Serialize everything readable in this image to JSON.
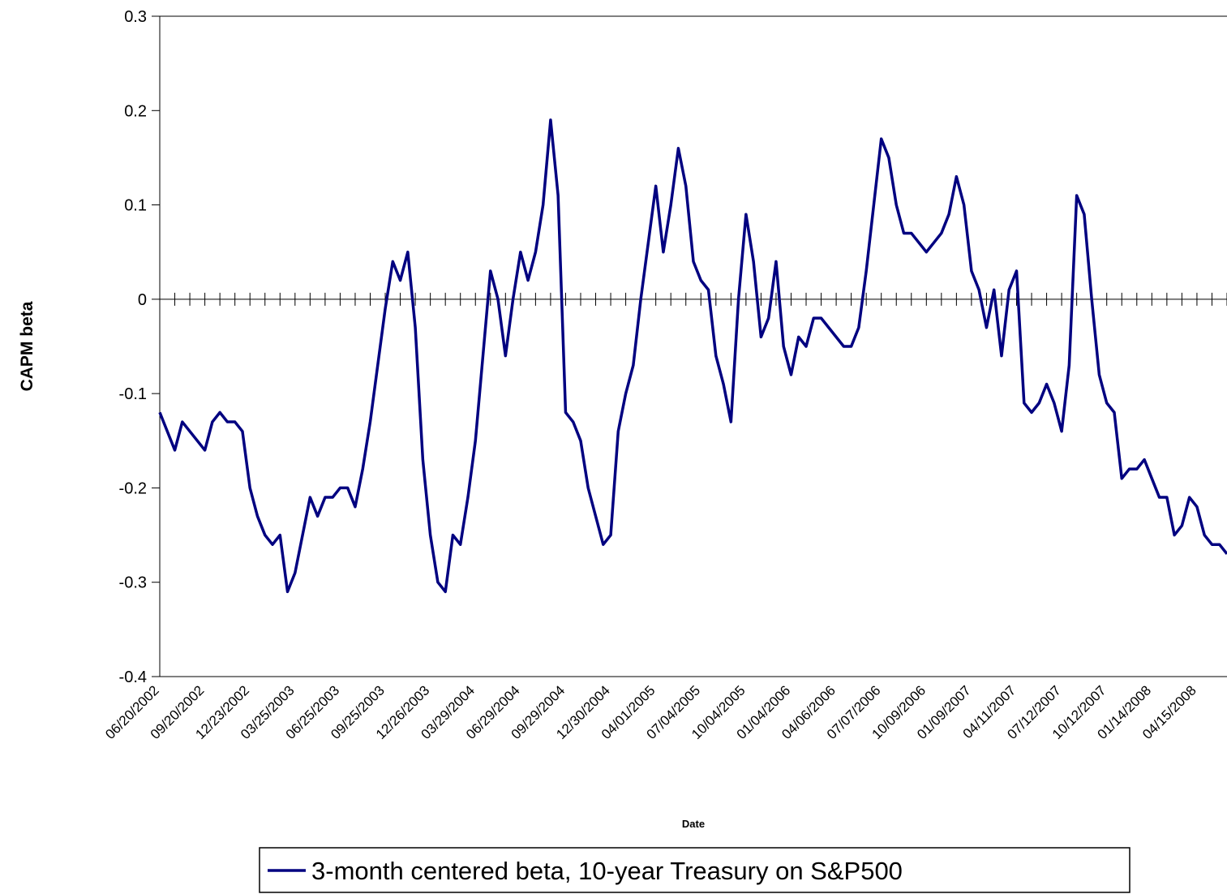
{
  "chart_data": {
    "type": "line",
    "x_label": "Date",
    "y_label": "CAPM beta",
    "categories": [
      "06/20/2002",
      null,
      null,
      null,
      null,
      null,
      "09/20/2002",
      null,
      null,
      null,
      null,
      null,
      "12/23/2002",
      null,
      null,
      null,
      null,
      null,
      "03/25/2003",
      null,
      null,
      null,
      null,
      null,
      "06/25/2003",
      null,
      null,
      null,
      null,
      null,
      "09/25/2003",
      null,
      null,
      null,
      null,
      null,
      "12/26/2003",
      null,
      null,
      null,
      null,
      null,
      "03/29/2004",
      null,
      null,
      null,
      null,
      null,
      "06/29/2004",
      null,
      null,
      null,
      null,
      null,
      "09/29/2004",
      null,
      null,
      null,
      null,
      null,
      "12/30/2004",
      null,
      null,
      null,
      null,
      null,
      "04/01/2005",
      null,
      null,
      null,
      null,
      null,
      "07/04/2005",
      null,
      null,
      null,
      null,
      null,
      "10/04/2005",
      null,
      null,
      null,
      null,
      null,
      "01/04/2006",
      null,
      null,
      null,
      null,
      null,
      "04/06/2006",
      null,
      null,
      null,
      null,
      null,
      "07/07/2006",
      null,
      null,
      null,
      null,
      null,
      "10/09/2006",
      null,
      null,
      null,
      null,
      null,
      "01/09/2007",
      null,
      null,
      null,
      null,
      null,
      "04/11/2007",
      null,
      null,
      null,
      null,
      null,
      "07/12/2007",
      null,
      null,
      null,
      null,
      null,
      "10/12/2007",
      null,
      null,
      null,
      null,
      null,
      "01/14/2008",
      null,
      null,
      null,
      null,
      null,
      "04/15/2008",
      null,
      null,
      null,
      null
    ],
    "series": [
      {
        "name": "3-month centered beta, 10-year Treasury on S&P500",
        "color": "#000080",
        "values": [
          -0.12,
          -0.14,
          -0.16,
          -0.13,
          -0.14,
          -0.15,
          -0.16,
          -0.13,
          -0.12,
          -0.13,
          -0.13,
          -0.14,
          -0.2,
          -0.23,
          -0.25,
          -0.26,
          -0.25,
          -0.31,
          -0.29,
          -0.25,
          -0.21,
          -0.23,
          -0.21,
          -0.21,
          -0.2,
          -0.2,
          -0.22,
          -0.18,
          -0.13,
          -0.07,
          -0.01,
          0.04,
          0.02,
          0.05,
          -0.03,
          -0.17,
          -0.25,
          -0.3,
          -0.31,
          -0.25,
          -0.26,
          -0.21,
          -0.15,
          -0.06,
          0.03,
          0.0,
          -0.06,
          0.0,
          0.05,
          0.02,
          0.05,
          0.1,
          0.19,
          0.11,
          -0.12,
          -0.13,
          -0.15,
          -0.2,
          -0.23,
          -0.26,
          -0.25,
          -0.14,
          -0.1,
          -0.07,
          0.0,
          0.06,
          0.12,
          0.05,
          0.1,
          0.16,
          0.12,
          0.04,
          0.02,
          0.01,
          -0.06,
          -0.09,
          -0.13,
          0.0,
          0.09,
          0.04,
          -0.04,
          -0.02,
          0.04,
          -0.05,
          -0.08,
          -0.04,
          -0.05,
          -0.02,
          -0.02,
          -0.03,
          -0.04,
          -0.05,
          -0.05,
          -0.03,
          0.03,
          0.1,
          0.17,
          0.15,
          0.1,
          0.07,
          0.07,
          0.06,
          0.05,
          0.06,
          0.07,
          0.09,
          0.13,
          0.1,
          0.03,
          0.01,
          -0.03,
          0.01,
          -0.06,
          0.01,
          0.03,
          -0.11,
          -0.12,
          -0.11,
          -0.09,
          -0.11,
          -0.14,
          -0.07,
          0.11,
          0.09,
          0.0,
          -0.08,
          -0.11,
          -0.12,
          -0.19,
          -0.18,
          -0.18,
          -0.17,
          -0.19,
          -0.21,
          -0.21,
          -0.25,
          -0.24,
          -0.21,
          -0.22,
          -0.25,
          -0.26,
          -0.26,
          -0.27
        ]
      }
    ],
    "ylim": [
      -0.4,
      0.3
    ],
    "yticks": [
      -0.4,
      -0.3,
      -0.2,
      -0.1,
      0,
      0.1,
      0.2,
      0.3
    ],
    "grid": false,
    "legend": "bottom"
  }
}
